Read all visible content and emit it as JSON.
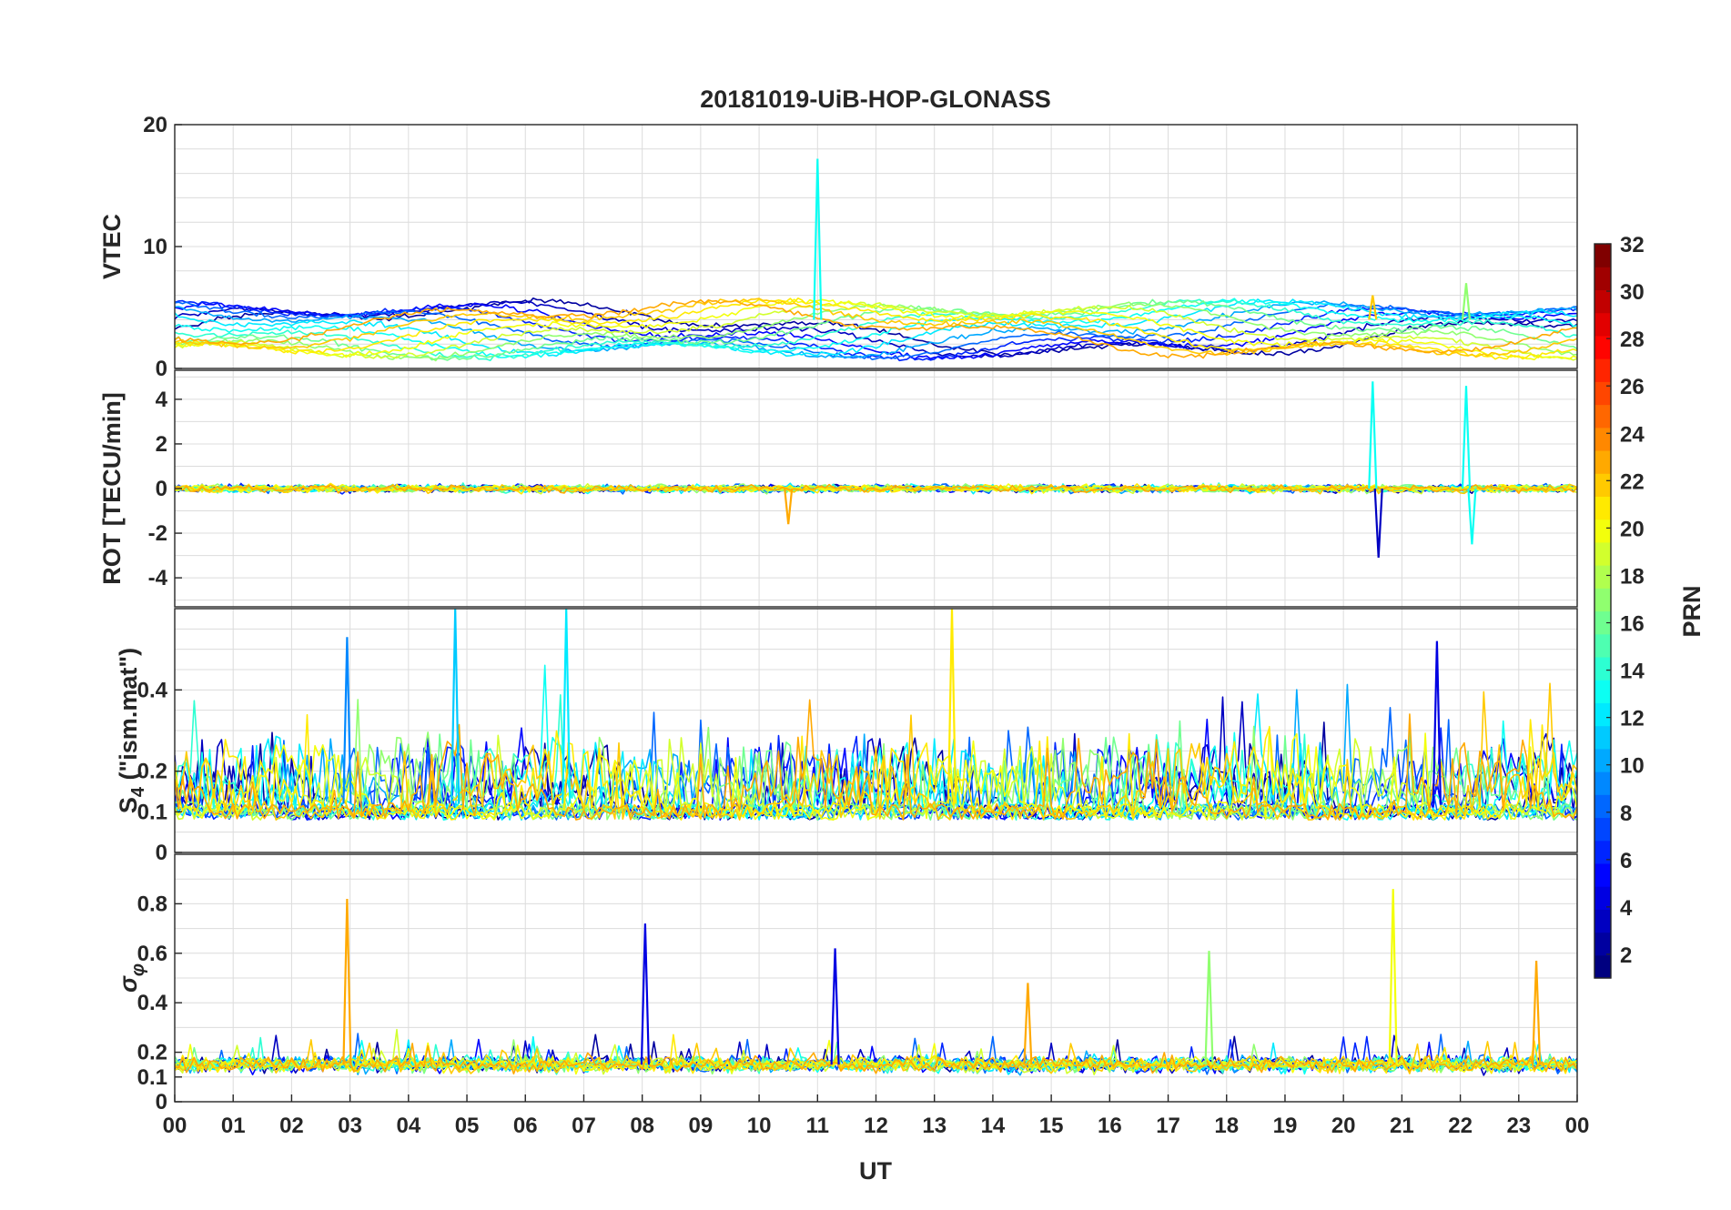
{
  "chart_data": [
    {
      "type": "line",
      "title": "20181019-UiB-HOP-GLONASS",
      "ylabel": "VTEC",
      "ylim": [
        0,
        20
      ],
      "yticks": [
        0,
        10,
        20
      ],
      "xlim": [
        0,
        24
      ],
      "features": [
        {
          "x": 11.0,
          "y": 17.2,
          "prn": 13
        },
        {
          "x": 20.5,
          "y": 6.0,
          "prn": 22
        },
        {
          "x": 22.1,
          "y": 7.0,
          "prn": 17
        }
      ]
    },
    {
      "type": "line",
      "ylabel": "ROT [TECU/min]",
      "ylim": [
        -5.3,
        5.3
      ],
      "yticks": [
        -4,
        -2,
        0,
        2,
        4
      ],
      "xlim": [
        0,
        24
      ],
      "features": [
        {
          "x": 20.5,
          "y": 4.8,
          "prn": 13
        },
        {
          "x": 20.6,
          "y": -3.1,
          "prn": 3
        },
        {
          "x": 22.1,
          "y": 4.6,
          "prn": 13
        },
        {
          "x": 22.2,
          "y": -2.5,
          "prn": 13
        },
        {
          "x": 10.5,
          "y": -1.6,
          "prn": 23
        }
      ]
    },
    {
      "type": "line",
      "ylabel_main": "S",
      "ylabel_sub": "4",
      "ylabel_rest": " (\"ism.mat\")",
      "ylim": [
        0,
        0.6
      ],
      "yticks": [
        0,
        0.1,
        0.2,
        0.4
      ],
      "xlim": [
        0,
        24
      ],
      "features": [
        {
          "x": 2.95,
          "y": 0.53,
          "prn": 9
        },
        {
          "x": 4.8,
          "y": 0.6,
          "prn": 11
        },
        {
          "x": 6.7,
          "y": 0.6,
          "prn": 12
        },
        {
          "x": 13.3,
          "y": 0.6,
          "prn": 21
        },
        {
          "x": 21.6,
          "y": 0.52,
          "prn": 4
        }
      ]
    },
    {
      "type": "line",
      "ylabel": "σ φ",
      "ylabel_main": "σ",
      "ylabel_sub": "φ",
      "ylim": [
        0,
        1.0
      ],
      "yticks": [
        0,
        0.1,
        0.2,
        0.4,
        0.6,
        0.8
      ],
      "xlim": [
        0,
        24
      ],
      "xlabel": "UT",
      "xticks": [
        "00",
        "01",
        "02",
        "03",
        "04",
        "05",
        "06",
        "07",
        "08",
        "09",
        "10",
        "11",
        "12",
        "13",
        "14",
        "15",
        "16",
        "17",
        "18",
        "19",
        "20",
        "21",
        "22",
        "23",
        "00"
      ],
      "features": [
        {
          "x": 2.95,
          "y": 0.82,
          "prn": 23
        },
        {
          "x": 8.05,
          "y": 0.72,
          "prn": 4
        },
        {
          "x": 11.3,
          "y": 0.62,
          "prn": 4
        },
        {
          "x": 14.6,
          "y": 0.48,
          "prn": 23
        },
        {
          "x": 17.7,
          "y": 0.61,
          "prn": 17
        },
        {
          "x": 20.85,
          "y": 0.86,
          "prn": 20
        },
        {
          "x": 23.3,
          "y": 0.57,
          "prn": 23
        }
      ]
    }
  ],
  "colorbar": {
    "label": "PRN",
    "range": [
      1,
      32
    ],
    "ticks": [
      2,
      4,
      6,
      8,
      10,
      12,
      14,
      16,
      18,
      20,
      22,
      24,
      26,
      28,
      30,
      32
    ]
  },
  "colors": {
    "text": "#262626",
    "grid": "#dcdcdc"
  }
}
